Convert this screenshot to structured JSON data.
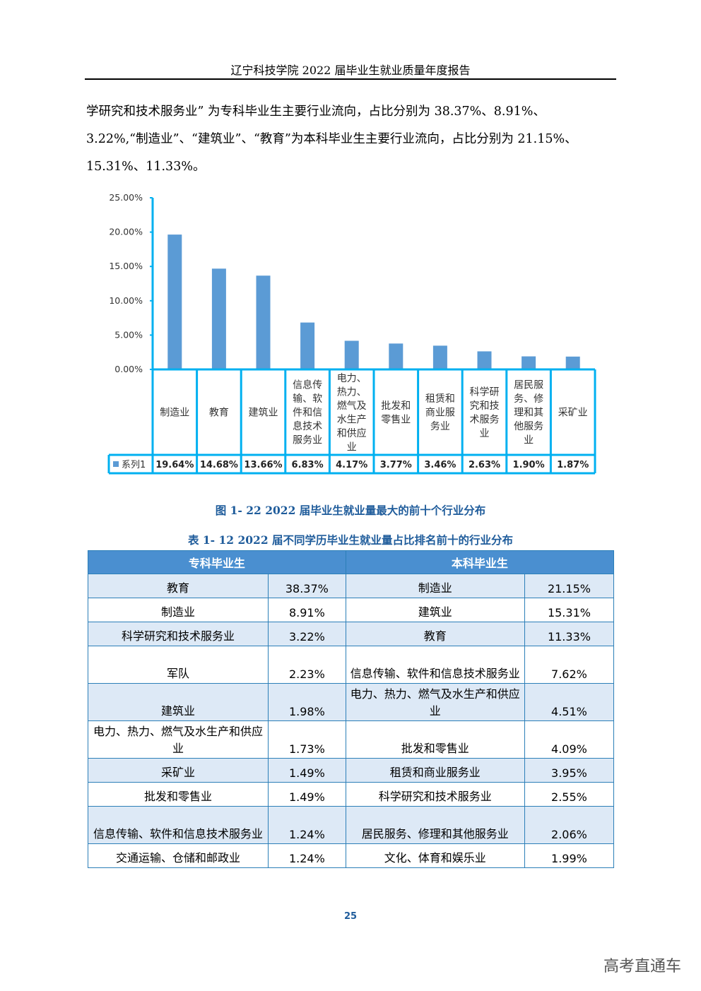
{
  "header": {
    "title": "辽宁科技学院 2022 届毕业生就业质量年度报告"
  },
  "paragraph": {
    "lines": [
      "学研究和技术服务业”  为专科毕业生主要行业流向，占比分别为 38.37%、8.91%、",
      "3.22%,“制造业”、“建筑业”、“教育”为本科毕业生主要行业流向，占比分别为 21.15%、",
      "15.31%、11.33%。"
    ]
  },
  "chart_data": {
    "type": "bar",
    "title": "",
    "xlabel": "",
    "ylabel": "",
    "ylim": [
      0,
      25
    ],
    "y_ticks": [
      "0.00%",
      "5.00%",
      "10.00%",
      "15.00%",
      "20.00%",
      "25.00%"
    ],
    "categories": [
      [
        "制造业"
      ],
      [
        "教育"
      ],
      [
        "建筑业"
      ],
      [
        "信息传",
        "输、软",
        "件和信",
        "息技术",
        "服务业"
      ],
      [
        "电力、",
        "热力、",
        "燃气及",
        "水生产",
        "和供应",
        "业"
      ],
      [
        "批发和",
        "零售业"
      ],
      [
        "租赁和",
        "商业服",
        "务业"
      ],
      [
        "科学研",
        "究和技",
        "术服务",
        "业"
      ],
      [
        "居民服",
        "务、修",
        "理和其",
        "他服务",
        "业"
      ],
      [
        "采矿业"
      ]
    ],
    "series": [
      {
        "name": "系列1",
        "values": [
          19.64,
          14.68,
          13.66,
          6.83,
          4.17,
          3.77,
          3.46,
          2.63,
          1.9,
          1.87
        ],
        "labels": [
          "19.64%",
          "14.68%",
          "13.66%",
          "6.83%",
          "4.17%",
          "3.77%",
          "3.46%",
          "2.63%",
          "1.90%",
          "1.87%"
        ]
      }
    ],
    "legend": "bottom-left data table",
    "bar_color": "#5b9bd5",
    "border_color": "#00b0f0"
  },
  "figure_caption": "图 1- 22   2022 届毕业生就业量最大的前十个行业分布",
  "table_caption": "表 1- 12   2022 届不同学历毕业生就业量占比排名前十的行业分布",
  "table": {
    "headers": [
      "专科毕业生",
      "本科毕业生"
    ],
    "rows": [
      {
        "a": "教育",
        "ap": "38.37%",
        "b": "制造业",
        "bp": "21.15%"
      },
      {
        "a": "制造业",
        "ap": "8.91%",
        "b": "建筑业",
        "bp": "15.31%"
      },
      {
        "a": "科学研究和技术服务业",
        "ap": "3.22%",
        "b": "教育",
        "bp": "11.33%"
      },
      {
        "a": "军队",
        "ap": "2.23%",
        "b": "信息传输、软件和信息技术服务业",
        "bp": "7.62%"
      },
      {
        "a": "建筑业",
        "ap": "1.98%",
        "b": "电力、热力、燃气及水生产和供应业",
        "bp": "4.51%"
      },
      {
        "a": "电力、热力、燃气及水生产和供应业",
        "ap": "1.73%",
        "b": "批发和零售业",
        "bp": "4.09%"
      },
      {
        "a": "采矿业",
        "ap": "1.49%",
        "b": "租赁和商业服务业",
        "bp": "3.95%"
      },
      {
        "a": "批发和零售业",
        "ap": "1.49%",
        "b": "科学研究和技术服务业",
        "bp": "2.55%"
      },
      {
        "a": "信息传输、软件和信息技术服务业",
        "ap": "1.24%",
        "b": "居民服务、修理和其他服务业",
        "bp": "2.06%"
      },
      {
        "a": "交通运输、仓储和邮政业",
        "ap": "1.24%",
        "b": "文化、体育和娱乐业",
        "bp": "1.99%"
      }
    ]
  },
  "page_number": "25",
  "watermark": "高考直通车",
  "colors": {
    "caption": "#1f5c9b",
    "table_header": "#4a8fd0",
    "table_alt_row": "#dde9f6"
  }
}
